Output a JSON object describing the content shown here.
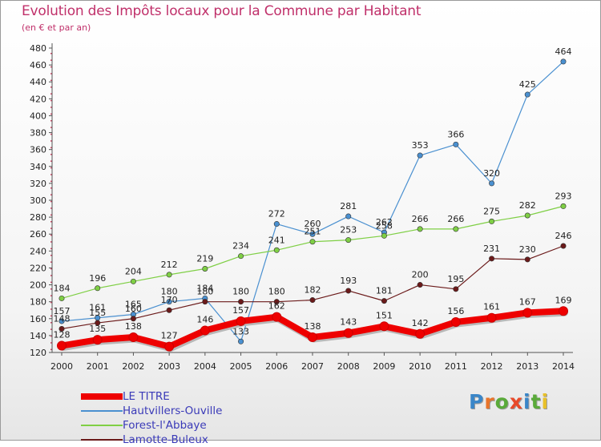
{
  "title": "Evolution des Impôts locaux pour la Commune par Habitant",
  "subtitle": "(en € et par an)",
  "logo": {
    "letters": [
      "P",
      "r",
      "o",
      "x",
      "i",
      "t",
      "i"
    ],
    "colors": [
      "#3a86c8",
      "#e8742a",
      "#5aaa3a",
      "#e84a2a",
      "#3a86c8",
      "#5aaa3a",
      "#e8c02a"
    ]
  },
  "chart_data": {
    "type": "line",
    "x": [
      2000,
      2001,
      2002,
      2003,
      2004,
      2005,
      2006,
      2007,
      2008,
      2009,
      2010,
      2011,
      2012,
      2013,
      2014
    ],
    "ylim": [
      120,
      480
    ],
    "yticks": [
      120,
      140,
      160,
      180,
      200,
      220,
      240,
      260,
      280,
      300,
      320,
      340,
      360,
      380,
      400,
      420,
      440,
      460,
      480
    ],
    "grid": false,
    "legend_position": "bottom-left",
    "series": [
      {
        "name": "Hautvillers-Ouville",
        "color": "#4a90d0",
        "values": [
          157,
          161,
          165,
          180,
          184,
          133,
          272,
          260,
          281,
          262,
          353,
          366,
          320,
          425,
          464
        ],
        "labels": [
          "157",
          "161",
          "165",
          "180",
          "184",
          "133",
          "272",
          "260",
          "281",
          "262",
          "353",
          "366",
          "320",
          "425",
          "464"
        ]
      },
      {
        "name": "Forest-l'Abbaye",
        "color": "#7fcf45",
        "values": [
          184,
          196,
          204,
          212,
          219,
          234,
          241,
          251,
          253,
          258,
          266,
          266,
          275,
          282,
          293
        ],
        "labels": [
          "184",
          "196",
          "204",
          "212",
          "219",
          "234",
          "241",
          "251",
          "253",
          "258",
          "266",
          "266",
          "275",
          "282",
          "293"
        ]
      },
      {
        "name": "Lamotte-Buleux",
        "color": "#6b1a1a",
        "values": [
          148,
          155,
          160,
          170,
          180,
          180,
          180,
          182,
          193,
          181,
          200,
          195,
          231,
          230,
          246
        ],
        "labels": [
          "148",
          "155",
          "160",
          "170",
          "180",
          "180",
          "180",
          "182",
          "193",
          "181",
          "200",
          "195",
          "231",
          "230",
          "246"
        ]
      },
      {
        "name": "LE TITRE",
        "color": "#ee0000",
        "values": [
          128,
          135,
          138,
          127,
          146,
          157,
          162,
          138,
          143,
          151,
          142,
          156,
          161,
          167,
          169
        ],
        "labels": [
          "128",
          "135",
          "138",
          "127",
          "146",
          "157",
          "162",
          "138",
          "143",
          "151",
          "142",
          "156",
          "161",
          "167",
          "169"
        ]
      }
    ]
  }
}
